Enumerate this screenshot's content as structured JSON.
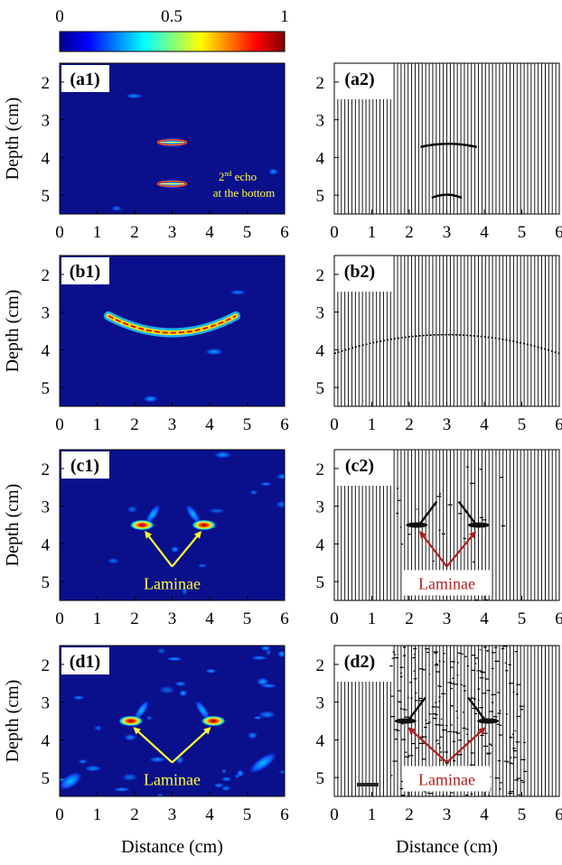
{
  "colorbar": {
    "tick_labels": [
      "0",
      "0.5",
      "1"
    ],
    "tick_values": [
      0,
      0.5,
      1
    ],
    "colormap": "jet"
  },
  "colors": {
    "map_background": "#0a0f8c",
    "annotation_yellow": "#ffff33",
    "annotation_red": "#b01f1f",
    "trace_line": "#000000"
  },
  "chart_data": [
    {
      "id": "a1",
      "type": "heatmap",
      "panel_label": "(a1)",
      "xlabel": "",
      "ylabel": "Depth (cm)",
      "xlim": [
        0,
        6
      ],
      "ylim": [
        5.5,
        1.5
      ],
      "xticks": [
        "0",
        "1",
        "2",
        "3",
        "4",
        "5",
        "6"
      ],
      "yticks": [
        "2",
        "3",
        "4",
        "5"
      ],
      "features": [
        {
          "kind": "echo",
          "x": [
            2.3,
            3.7
          ],
          "depth": 3.6,
          "intensity": 1.0
        },
        {
          "kind": "echo",
          "x": [
            2.3,
            3.7
          ],
          "depth": 4.7,
          "intensity": 0.9
        }
      ],
      "annotation": {
        "lines": [
          "2",
          "nd",
          " echo",
          "at the bottom"
        ]
      }
    },
    {
      "id": "a2",
      "type": "line",
      "panel_label": "(a2)",
      "xlabel": "",
      "ylabel": "",
      "xlim": [
        0,
        6
      ],
      "ylim": [
        5.5,
        1.5
      ],
      "xticks": [
        "0",
        "1",
        "2",
        "3",
        "4",
        "5",
        "6"
      ],
      "yticks": [
        "2",
        "3",
        "4",
        "5"
      ],
      "features": [
        {
          "kind": "arc",
          "x": [
            2.3,
            3.8
          ],
          "depth": 3.65
        },
        {
          "kind": "arc",
          "x": [
            2.6,
            3.4
          ],
          "depth": 5.0
        }
      ]
    },
    {
      "id": "b1",
      "type": "heatmap",
      "panel_label": "(b1)",
      "xlabel": "",
      "ylabel": "Depth (cm)",
      "xlim": [
        0,
        6
      ],
      "ylim": [
        5.5,
        1.5
      ],
      "xticks": [
        "0",
        "1",
        "2",
        "3",
        "4",
        "5",
        "6"
      ],
      "yticks": [
        "2",
        "3",
        "4",
        "5"
      ],
      "features": [
        {
          "kind": "arc",
          "x": [
            1.3,
            4.7
          ],
          "depth_center": 3.55,
          "depth_edge": 3.1
        }
      ]
    },
    {
      "id": "b2",
      "type": "line",
      "panel_label": "(b2)",
      "xlabel": "",
      "ylabel": "",
      "xlim": [
        0,
        6
      ],
      "ylim": [
        5.5,
        1.5
      ],
      "xticks": [
        "0",
        "1",
        "2",
        "3",
        "4",
        "5",
        "6"
      ],
      "yticks": [
        "2",
        "3",
        "4",
        "5"
      ],
      "features": [
        {
          "kind": "arc",
          "x": [
            0,
            6
          ],
          "depth_center": 3.6,
          "depth_edge": 4.1
        }
      ]
    },
    {
      "id": "c1",
      "type": "heatmap",
      "panel_label": "(c1)",
      "xlabel": "",
      "ylabel": "Depth (cm)",
      "xlim": [
        0,
        6
      ],
      "ylim": [
        5.5,
        1.5
      ],
      "xticks": [
        "0",
        "1",
        "2",
        "3",
        "4",
        "5",
        "6"
      ],
      "yticks": [
        "2",
        "3",
        "4",
        "5"
      ],
      "features": [
        {
          "kind": "lamina",
          "x": 2.2,
          "depth": 3.5
        },
        {
          "kind": "lamina",
          "x": 3.85,
          "depth": 3.5
        }
      ],
      "annotation": {
        "text": "Laminae",
        "target_x": 3.0,
        "target_depth": 4.6
      }
    },
    {
      "id": "c2",
      "type": "line",
      "panel_label": "(c2)",
      "xlabel": "",
      "ylabel": "",
      "xlim": [
        0,
        6
      ],
      "ylim": [
        5.5,
        1.5
      ],
      "xticks": [
        "0",
        "1",
        "2",
        "3",
        "4",
        "5",
        "6"
      ],
      "yticks": [
        "2",
        "3",
        "4",
        "5"
      ],
      "features": [
        {
          "kind": "lamina",
          "x": 2.2,
          "depth": 3.5
        },
        {
          "kind": "lamina",
          "x": 3.85,
          "depth": 3.5
        }
      ],
      "annotation": {
        "text": "Laminae",
        "target_x": 3.0,
        "target_depth": 4.6
      }
    },
    {
      "id": "d1",
      "type": "heatmap",
      "panel_label": "(d1)",
      "xlabel": "Distance (cm)",
      "ylabel": "Depth (cm)",
      "xlim": [
        0,
        6
      ],
      "ylim": [
        5.5,
        1.5
      ],
      "xticks": [
        "0",
        "1",
        "2",
        "3",
        "4",
        "5",
        "6"
      ],
      "yticks": [
        "2",
        "3",
        "4",
        "5"
      ],
      "features": [
        {
          "kind": "lamina",
          "x": 1.9,
          "depth": 3.5
        },
        {
          "kind": "lamina",
          "x": 4.1,
          "depth": 3.5
        }
      ],
      "annotation": {
        "text": "Laminae",
        "target_x": 3.0,
        "target_depth": 4.6
      }
    },
    {
      "id": "d2",
      "type": "line",
      "panel_label": "(d2)",
      "xlabel": "Distance (cm)",
      "ylabel": "",
      "xlim": [
        0,
        6
      ],
      "ylim": [
        5.5,
        1.5
      ],
      "xticks": [
        "0",
        "1",
        "2",
        "3",
        "4",
        "5",
        "6"
      ],
      "yticks": [
        "2",
        "3",
        "4",
        "5"
      ],
      "features": [
        {
          "kind": "lamina",
          "x": 1.9,
          "depth": 3.5
        },
        {
          "kind": "lamina",
          "x": 4.1,
          "depth": 3.5
        }
      ],
      "annotation": {
        "text": "Laminae",
        "target_x": 3.0,
        "target_depth": 4.6
      }
    }
  ]
}
